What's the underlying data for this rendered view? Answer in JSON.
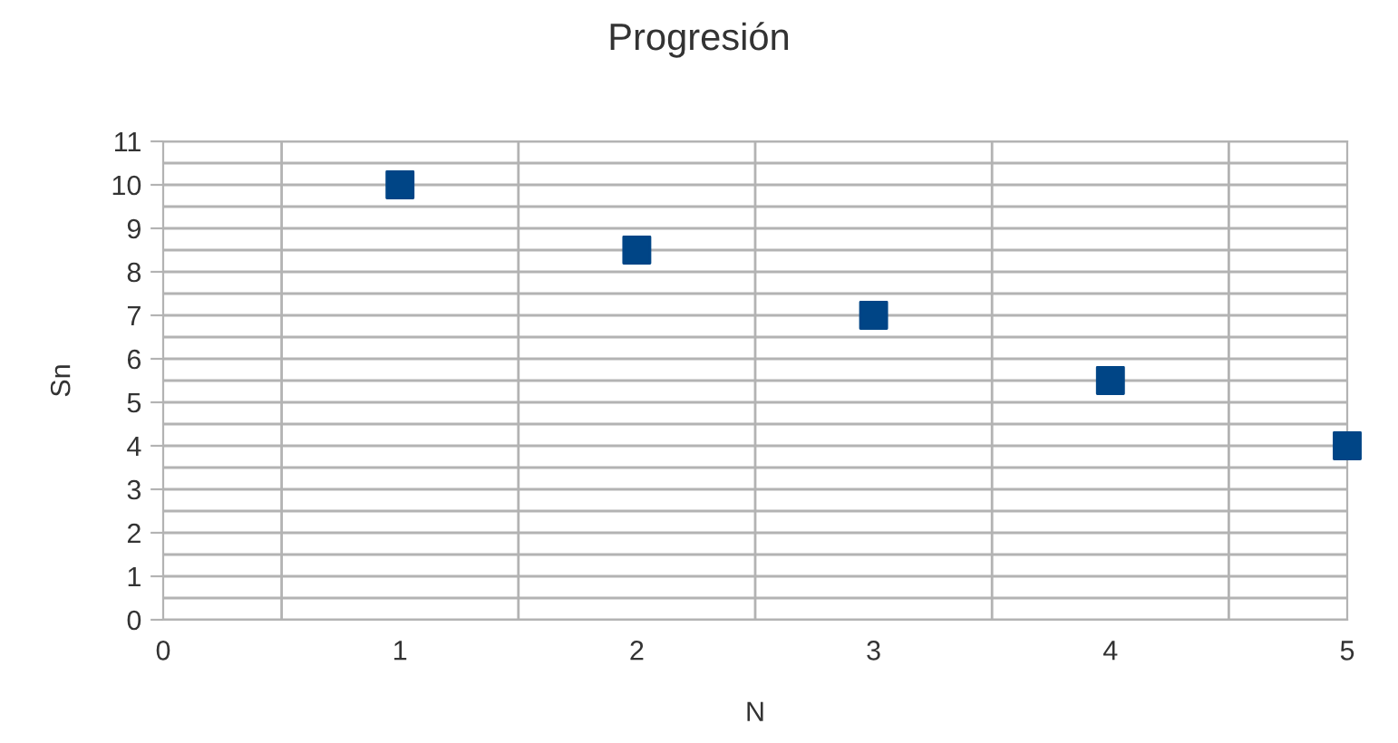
{
  "chart_data": {
    "type": "scatter",
    "title": "Progresión",
    "xlabel": "N",
    "ylabel": "Sn",
    "x": [
      1,
      2,
      3,
      4,
      5
    ],
    "series": [
      {
        "color": "#004586",
        "values": [
          10,
          8.5,
          7,
          5.5,
          4
        ]
      }
    ],
    "marker": "square",
    "xlim": [
      0,
      5
    ],
    "xticks": [
      0,
      1,
      2,
      3,
      4,
      5
    ],
    "ylim": [
      0,
      11
    ],
    "yticks": [
      0,
      1,
      2,
      3,
      4,
      5,
      6,
      7,
      8,
      9,
      10,
      11
    ],
    "grid": true
  }
}
